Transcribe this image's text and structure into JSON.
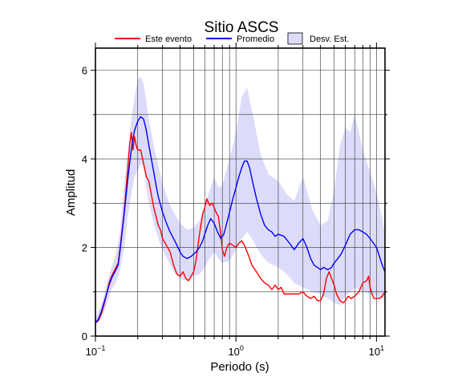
{
  "chart_data": {
    "type": "line",
    "title": "Sitio ASCS",
    "xlabel": "Periodo (s)",
    "ylabel": "Amplitud",
    "xscale": "log",
    "xlim": [
      0.1,
      11.5
    ],
    "ylim": [
      0,
      6.5
    ],
    "x_ticks": [
      {
        "value": 0.1,
        "base": "10",
        "exp": "−1"
      },
      {
        "value": 1,
        "base": "10",
        "exp": "0"
      },
      {
        "value": 10,
        "base": "10",
        "exp": "1"
      }
    ],
    "y_ticks": [
      0,
      2,
      4,
      6
    ],
    "grid": true,
    "legend": {
      "position": "top",
      "items": [
        {
          "name": "Este evento",
          "kind": "line",
          "color": "#ff0000"
        },
        {
          "name": "Promedio",
          "kind": "line",
          "color": "#0000ff"
        },
        {
          "name": "Desv. Est.",
          "kind": "area",
          "color": "#dcdcfa"
        }
      ]
    },
    "series": [
      {
        "name": "Este evento",
        "color": "#ff0000",
        "points": [
          [
            0.1,
            0.3
          ],
          [
            0.105,
            0.35
          ],
          [
            0.11,
            0.5
          ],
          [
            0.115,
            0.7
          ],
          [
            0.12,
            0.95
          ],
          [
            0.125,
            1.2
          ],
          [
            0.13,
            1.35
          ],
          [
            0.135,
            1.45
          ],
          [
            0.14,
            1.55
          ],
          [
            0.145,
            1.65
          ],
          [
            0.15,
            2.0
          ],
          [
            0.155,
            2.4
          ],
          [
            0.16,
            2.8
          ],
          [
            0.165,
            3.3
          ],
          [
            0.17,
            3.8
          ],
          [
            0.175,
            4.3
          ],
          [
            0.18,
            4.6
          ],
          [
            0.185,
            4.2
          ],
          [
            0.19,
            4.5
          ],
          [
            0.195,
            4.3
          ],
          [
            0.2,
            4.2
          ],
          [
            0.21,
            4.2
          ],
          [
            0.22,
            3.9
          ],
          [
            0.23,
            3.6
          ],
          [
            0.24,
            3.5
          ],
          [
            0.25,
            3.2
          ],
          [
            0.26,
            2.9
          ],
          [
            0.27,
            2.7
          ],
          [
            0.28,
            2.5
          ],
          [
            0.29,
            2.4
          ],
          [
            0.3,
            2.2
          ],
          [
            0.32,
            2.05
          ],
          [
            0.34,
            1.9
          ],
          [
            0.36,
            1.6
          ],
          [
            0.38,
            1.4
          ],
          [
            0.4,
            1.35
          ],
          [
            0.42,
            1.45
          ],
          [
            0.44,
            1.3
          ],
          [
            0.46,
            1.25
          ],
          [
            0.48,
            1.35
          ],
          [
            0.5,
            1.45
          ],
          [
            0.52,
            1.7
          ],
          [
            0.55,
            2.3
          ],
          [
            0.58,
            2.75
          ],
          [
            0.6,
            2.9
          ],
          [
            0.62,
            3.1
          ],
          [
            0.65,
            2.95
          ],
          [
            0.68,
            3.0
          ],
          [
            0.7,
            2.9
          ],
          [
            0.72,
            2.8
          ],
          [
            0.75,
            2.7
          ],
          [
            0.78,
            2.3
          ],
          [
            0.8,
            1.95
          ],
          [
            0.83,
            1.8
          ],
          [
            0.86,
            2.0
          ],
          [
            0.9,
            2.1
          ],
          [
            0.95,
            2.05
          ],
          [
            1.0,
            2.0
          ],
          [
            1.05,
            2.1
          ],
          [
            1.1,
            2.15
          ],
          [
            1.15,
            2.05
          ],
          [
            1.2,
            1.9
          ],
          [
            1.25,
            1.75
          ],
          [
            1.3,
            1.6
          ],
          [
            1.4,
            1.45
          ],
          [
            1.5,
            1.3
          ],
          [
            1.6,
            1.2
          ],
          [
            1.7,
            1.15
          ],
          [
            1.8,
            1.05
          ],
          [
            1.9,
            1.15
          ],
          [
            2.0,
            1.05
          ],
          [
            2.1,
            1.1
          ],
          [
            2.2,
            0.95
          ],
          [
            2.4,
            0.95
          ],
          [
            2.6,
            0.95
          ],
          [
            2.8,
            0.95
          ],
          [
            3.0,
            1.0
          ],
          [
            3.2,
            0.9
          ],
          [
            3.4,
            0.85
          ],
          [
            3.6,
            0.9
          ],
          [
            3.8,
            0.8
          ],
          [
            4.0,
            0.8
          ],
          [
            4.2,
            0.95
          ],
          [
            4.4,
            1.3
          ],
          [
            4.6,
            1.45
          ],
          [
            4.8,
            1.3
          ],
          [
            5.0,
            1.15
          ],
          [
            5.2,
            0.95
          ],
          [
            5.5,
            0.8
          ],
          [
            5.8,
            0.75
          ],
          [
            6.0,
            0.8
          ],
          [
            6.3,
            0.9
          ],
          [
            6.6,
            0.85
          ],
          [
            7.0,
            0.9
          ],
          [
            7.5,
            1.0
          ],
          [
            8.0,
            1.2
          ],
          [
            8.5,
            1.25
          ],
          [
            8.8,
            1.35
          ],
          [
            9.0,
            1.1
          ],
          [
            9.3,
            0.95
          ],
          [
            9.6,
            0.85
          ],
          [
            10.0,
            0.85
          ],
          [
            10.5,
            0.85
          ],
          [
            11.0,
            0.9
          ],
          [
            11.5,
            1.0
          ]
        ]
      },
      {
        "name": "Promedio",
        "color": "#0000ff",
        "points": [
          [
            0.1,
            0.3
          ],
          [
            0.105,
            0.38
          ],
          [
            0.11,
            0.55
          ],
          [
            0.115,
            0.75
          ],
          [
            0.12,
            0.95
          ],
          [
            0.125,
            1.15
          ],
          [
            0.13,
            1.3
          ],
          [
            0.135,
            1.4
          ],
          [
            0.14,
            1.5
          ],
          [
            0.145,
            1.6
          ],
          [
            0.15,
            1.95
          ],
          [
            0.155,
            2.35
          ],
          [
            0.16,
            2.75
          ],
          [
            0.165,
            3.15
          ],
          [
            0.17,
            3.55
          ],
          [
            0.175,
            3.9
          ],
          [
            0.18,
            4.2
          ],
          [
            0.185,
            4.45
          ],
          [
            0.19,
            4.65
          ],
          [
            0.195,
            4.75
          ],
          [
            0.2,
            4.85
          ],
          [
            0.21,
            4.95
          ],
          [
            0.22,
            4.9
          ],
          [
            0.23,
            4.65
          ],
          [
            0.24,
            4.3
          ],
          [
            0.25,
            4.0
          ],
          [
            0.26,
            3.7
          ],
          [
            0.27,
            3.4
          ],
          [
            0.28,
            3.15
          ],
          [
            0.3,
            2.8
          ],
          [
            0.32,
            2.55
          ],
          [
            0.34,
            2.35
          ],
          [
            0.36,
            2.2
          ],
          [
            0.38,
            2.05
          ],
          [
            0.4,
            1.9
          ],
          [
            0.42,
            1.8
          ],
          [
            0.45,
            1.75
          ],
          [
            0.48,
            1.8
          ],
          [
            0.5,
            1.85
          ],
          [
            0.52,
            1.9
          ],
          [
            0.55,
            2.0
          ],
          [
            0.58,
            2.15
          ],
          [
            0.6,
            2.3
          ],
          [
            0.63,
            2.5
          ],
          [
            0.66,
            2.65
          ],
          [
            0.7,
            2.55
          ],
          [
            0.74,
            2.35
          ],
          [
            0.78,
            2.2
          ],
          [
            0.82,
            2.3
          ],
          [
            0.86,
            2.55
          ],
          [
            0.9,
            2.8
          ],
          [
            0.95,
            3.1
          ],
          [
            1.0,
            3.35
          ],
          [
            1.05,
            3.6
          ],
          [
            1.1,
            3.8
          ],
          [
            1.15,
            3.95
          ],
          [
            1.2,
            3.95
          ],
          [
            1.25,
            3.8
          ],
          [
            1.3,
            3.55
          ],
          [
            1.4,
            3.1
          ],
          [
            1.5,
            2.75
          ],
          [
            1.6,
            2.5
          ],
          [
            1.7,
            2.4
          ],
          [
            1.8,
            2.35
          ],
          [
            1.9,
            2.25
          ],
          [
            2.0,
            2.3
          ],
          [
            2.2,
            2.25
          ],
          [
            2.4,
            2.1
          ],
          [
            2.6,
            1.95
          ],
          [
            2.8,
            2.1
          ],
          [
            3.0,
            2.2
          ],
          [
            3.2,
            2.0
          ],
          [
            3.4,
            1.75
          ],
          [
            3.6,
            1.6
          ],
          [
            3.8,
            1.55
          ],
          [
            4.0,
            1.5
          ],
          [
            4.2,
            1.55
          ],
          [
            4.5,
            1.5
          ],
          [
            4.8,
            1.55
          ],
          [
            5.0,
            1.65
          ],
          [
            5.3,
            1.75
          ],
          [
            5.6,
            1.85
          ],
          [
            6.0,
            2.05
          ],
          [
            6.5,
            2.3
          ],
          [
            7.0,
            2.4
          ],
          [
            7.5,
            2.4
          ],
          [
            8.0,
            2.35
          ],
          [
            8.5,
            2.3
          ],
          [
            9.0,
            2.2
          ],
          [
            9.5,
            2.1
          ],
          [
            10.0,
            2.0
          ],
          [
            10.5,
            1.8
          ],
          [
            11.0,
            1.6
          ],
          [
            11.5,
            1.45
          ]
        ]
      }
    ],
    "band": {
      "name": "Desv. Est.",
      "color": "#dcdcfa",
      "x": [
        0.1,
        0.11,
        0.12,
        0.13,
        0.14,
        0.15,
        0.16,
        0.17,
        0.18,
        0.19,
        0.2,
        0.21,
        0.22,
        0.23,
        0.24,
        0.26,
        0.28,
        0.3,
        0.33,
        0.36,
        0.4,
        0.45,
        0.5,
        0.55,
        0.6,
        0.65,
        0.7,
        0.75,
        0.8,
        0.9,
        1.0,
        1.1,
        1.2,
        1.3,
        1.5,
        1.7,
        2.0,
        2.3,
        2.6,
        3.0,
        3.5,
        4.0,
        4.5,
        5.0,
        5.5,
        6.0,
        6.5,
        7.0,
        8.0,
        9.0,
        10.0,
        11.0,
        11.5
      ],
      "upper": [
        0.4,
        0.7,
        1.15,
        1.55,
        1.85,
        2.4,
        3.4,
        4.2,
        4.9,
        5.4,
        5.8,
        5.85,
        5.7,
        5.3,
        4.9,
        4.3,
        3.85,
        3.45,
        3.05,
        2.8,
        2.55,
        2.4,
        2.45,
        2.6,
        2.95,
        3.3,
        3.6,
        3.35,
        3.4,
        4.0,
        4.6,
        5.4,
        5.6,
        5.1,
        4.1,
        3.65,
        3.5,
        3.2,
        3.05,
        3.6,
        2.85,
        2.5,
        2.6,
        3.3,
        4.3,
        4.7,
        4.6,
        5.0,
        4.2,
        3.7,
        3.25,
        2.65,
        2.3
      ],
      "lower": [
        0.25,
        0.4,
        0.7,
        1.05,
        1.2,
        1.5,
        2.0,
        2.7,
        3.2,
        3.6,
        3.75,
        3.9,
        3.8,
        3.4,
        3.0,
        2.55,
        2.2,
        1.95,
        1.7,
        1.45,
        1.3,
        1.25,
        1.35,
        1.4,
        1.55,
        1.75,
        1.9,
        1.75,
        1.65,
        1.7,
        1.95,
        2.2,
        2.35,
        2.2,
        1.85,
        1.65,
        1.55,
        1.4,
        1.2,
        1.1,
        1.0,
        0.95,
        0.85,
        0.75,
        0.7,
        0.9,
        1.0,
        1.1,
        1.0,
        0.95,
        0.9,
        0.85,
        0.85
      ]
    }
  }
}
